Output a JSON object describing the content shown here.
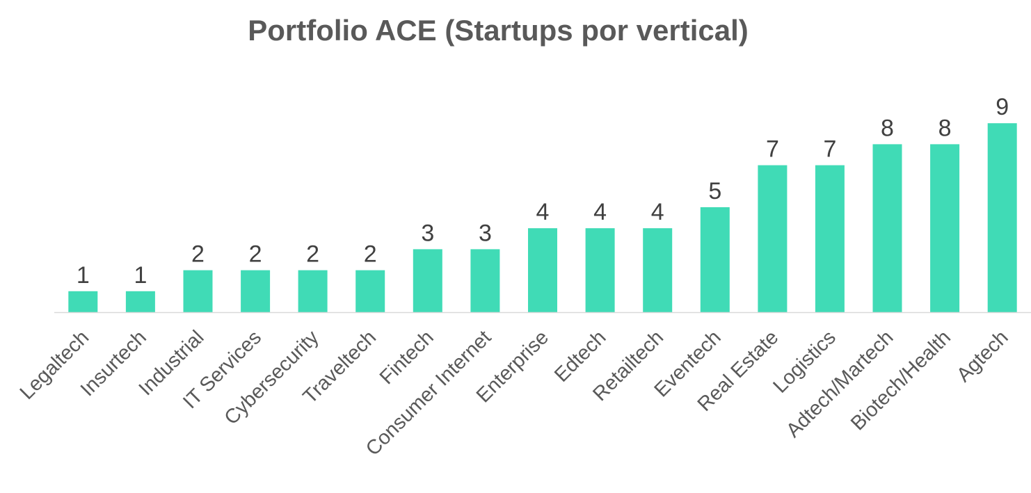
{
  "chart_data": {
    "type": "bar",
    "title": "Portfolio ACE (Startups por vertical)",
    "xlabel": "",
    "ylabel": "",
    "ylim": [
      0,
      9
    ],
    "grid": false,
    "legend": "none",
    "categories": [
      "Legaltech",
      "Insurtech",
      "Industrial",
      "IT Services",
      "Cybersecurity",
      "Traveltech",
      "Fintech",
      "Consumer Internet",
      "Enterprise",
      "Edtech",
      "Retailtech",
      "Eventech",
      "Real Estate",
      "Logistics",
      "Adtech/Martech",
      "Biotech/Health",
      "Agtech"
    ],
    "series": [
      {
        "name": "Startups",
        "values": [
          1,
          1,
          2,
          2,
          2,
          2,
          3,
          3,
          4,
          4,
          4,
          5,
          7,
          7,
          8,
          8,
          9
        ],
        "color": "#40DBB6"
      }
    ],
    "axis_color": "#D9D9D9"
  }
}
